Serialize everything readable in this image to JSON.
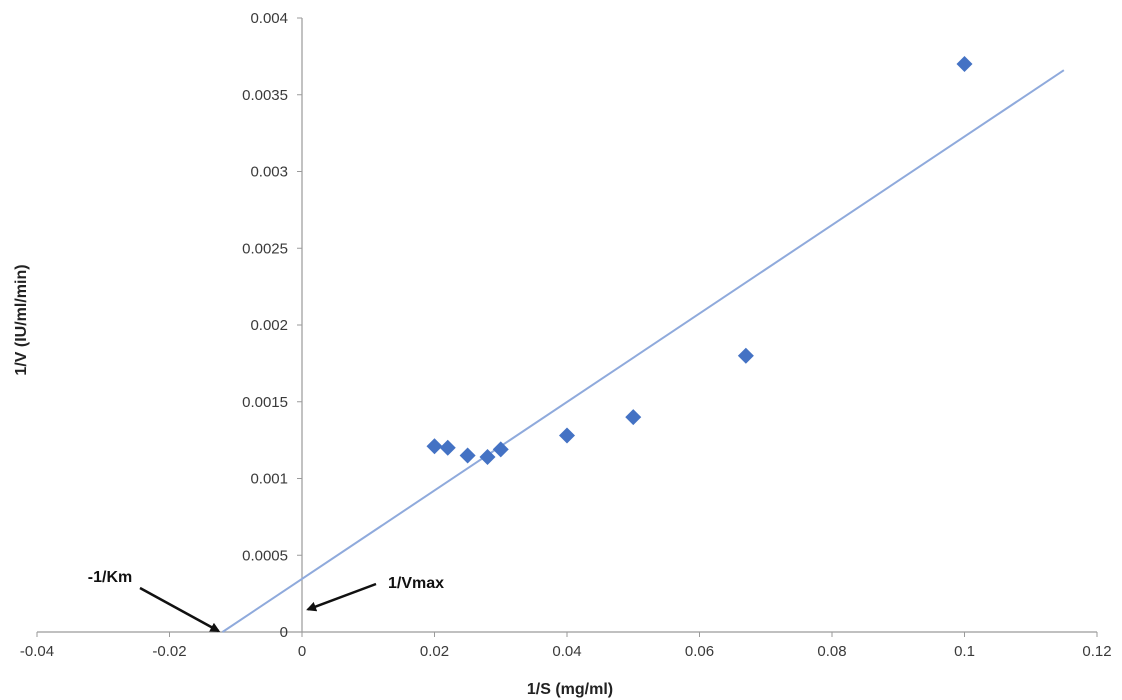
{
  "chart_data": {
    "type": "scatter",
    "xlabel": "1/S (mg/ml)",
    "ylabel": "1/V (IU/ml/min)",
    "xlim": [
      -0.04,
      0.12
    ],
    "ylim": [
      0,
      0.004
    ],
    "x_ticks": [
      -0.04,
      -0.02,
      0,
      0.02,
      0.04,
      0.06,
      0.08,
      0.1,
      0.12
    ],
    "x_tick_labels": [
      "-0.04",
      "-0.02",
      "0",
      "0.02",
      "0.04",
      "0.06",
      "0.08",
      "0.1",
      "0.12"
    ],
    "y_ticks": [
      0,
      0.0005,
      0.001,
      0.0015,
      0.002,
      0.0025,
      0.003,
      0.0035,
      0.004
    ],
    "y_tick_labels": [
      "0",
      "0.0005",
      "0.001",
      "0.0015",
      "0.002",
      "0.0025",
      "0.003",
      "0.0035",
      "0.004"
    ],
    "grid": false,
    "legend": "none",
    "series": [
      {
        "marker": "diamond",
        "color": "#4472C4",
        "points": [
          {
            "x": 0.02,
            "y": 0.00121
          },
          {
            "x": 0.022,
            "y": 0.0012
          },
          {
            "x": 0.025,
            "y": 0.00115
          },
          {
            "x": 0.028,
            "y": 0.00114
          },
          {
            "x": 0.03,
            "y": 0.00119
          },
          {
            "x": 0.04,
            "y": 0.00128
          },
          {
            "x": 0.05,
            "y": 0.0014
          },
          {
            "x": 0.067,
            "y": 0.0018
          },
          {
            "x": 0.1,
            "y": 0.0037
          }
        ]
      }
    ],
    "trendline": {
      "type": "linear",
      "color": "#8FAADC",
      "x_start": -0.012,
      "y_start": 0,
      "x_end": 0.115,
      "y_end": 0.00366
    },
    "annotations": [
      {
        "text": "-1/Km",
        "points_to": {
          "x": -0.012,
          "y": 0
        }
      },
      {
        "text": "1/Vmax",
        "points_to": {
          "x": 0,
          "y": 0.00031
        }
      }
    ]
  }
}
